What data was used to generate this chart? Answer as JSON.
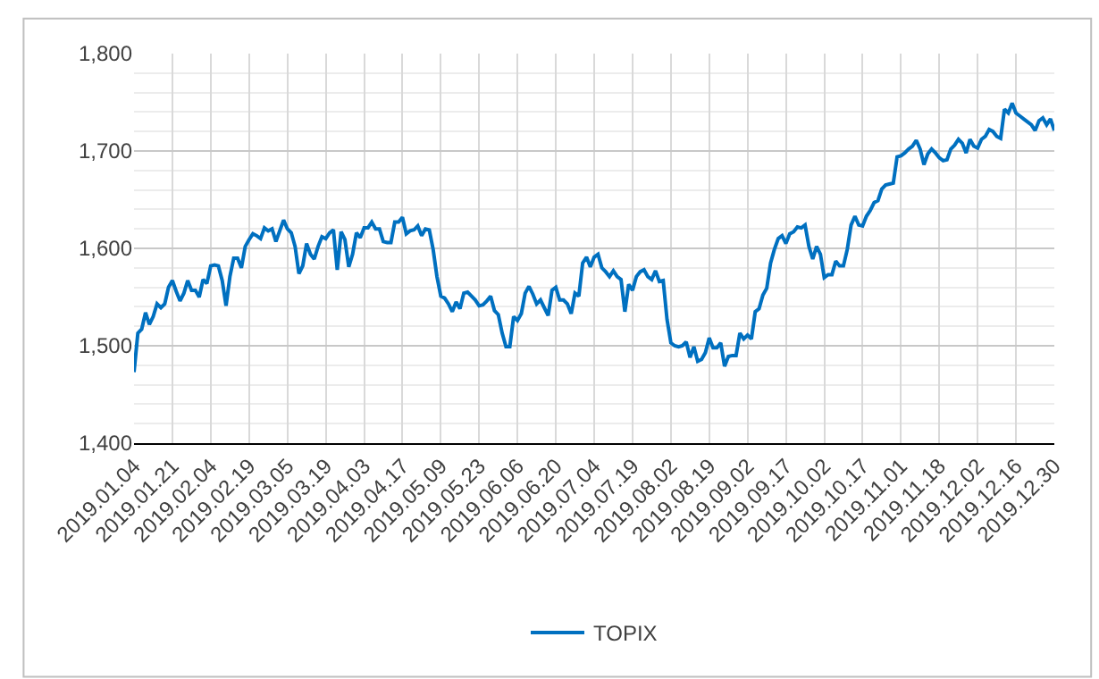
{
  "chart_data": {
    "type": "line",
    "categories": [
      "2019.01.04",
      null,
      null,
      null,
      null,
      null,
      null,
      null,
      null,
      null,
      "2019.01.21",
      null,
      null,
      null,
      null,
      null,
      null,
      null,
      null,
      null,
      "2019.02.04",
      null,
      null,
      null,
      null,
      null,
      null,
      null,
      null,
      null,
      "2019.02.19",
      null,
      null,
      null,
      null,
      null,
      null,
      null,
      null,
      null,
      "2019.03.05",
      null,
      null,
      null,
      null,
      null,
      null,
      null,
      null,
      null,
      "2019.03.19",
      null,
      null,
      null,
      null,
      null,
      null,
      null,
      null,
      null,
      "2019.04.03",
      null,
      null,
      null,
      null,
      null,
      null,
      null,
      null,
      null,
      "2019.04.17",
      null,
      null,
      null,
      null,
      null,
      null,
      null,
      null,
      null,
      "2019.05.09",
      null,
      null,
      null,
      null,
      null,
      null,
      null,
      null,
      null,
      "2019.05.23",
      null,
      null,
      null,
      null,
      null,
      null,
      null,
      null,
      null,
      "2019.06.06",
      null,
      null,
      null,
      null,
      null,
      null,
      null,
      null,
      null,
      "2019.06.20",
      null,
      null,
      null,
      null,
      null,
      null,
      null,
      null,
      null,
      "2019.07.04",
      null,
      null,
      null,
      null,
      null,
      null,
      null,
      null,
      null,
      "2019.07.19",
      null,
      null,
      null,
      null,
      null,
      null,
      null,
      null,
      null,
      "2019.08.02",
      null,
      null,
      null,
      null,
      null,
      null,
      null,
      null,
      null,
      "2019.08.19",
      null,
      null,
      null,
      null,
      null,
      null,
      null,
      null,
      null,
      "2019.09.02",
      null,
      null,
      null,
      null,
      null,
      null,
      null,
      null,
      null,
      "2019.09.17",
      null,
      null,
      null,
      null,
      null,
      null,
      null,
      null,
      null,
      "2019.10.02",
      null,
      null,
      null,
      null,
      null,
      null,
      null,
      null,
      null,
      "2019.10.17",
      null,
      null,
      null,
      null,
      null,
      null,
      null,
      null,
      null,
      "2019.11.01",
      null,
      null,
      null,
      null,
      null,
      null,
      null,
      null,
      null,
      "2019.11.18",
      null,
      null,
      null,
      null,
      null,
      null,
      null,
      null,
      null,
      "2019.12.02",
      null,
      null,
      null,
      null,
      null,
      null,
      null,
      null,
      null,
      "2019.12.16",
      null,
      null,
      null,
      null,
      null,
      null,
      null,
      null,
      null,
      "2019.12.30"
    ],
    "series": [
      {
        "name": "TOPIX",
        "color": "#0070c0",
        "values": [
          1473,
          1513,
          1517,
          1534,
          1522,
          1530,
          1543,
          1539,
          1543,
          1560,
          1567,
          1556,
          1546,
          1554,
          1567,
          1557,
          1557,
          1550,
          1568,
          1564,
          1582,
          1583,
          1582,
          1567,
          1541,
          1571,
          1590,
          1590,
          1580,
          1602,
          1609,
          1615,
          1613,
          1610,
          1621,
          1618,
          1620,
          1607,
          1618,
          1629,
          1620,
          1616,
          1602,
          1574,
          1582,
          1605,
          1594,
          1589,
          1602,
          1612,
          1610,
          1616,
          1619,
          1578,
          1617,
          1609,
          1581,
          1594,
          1616,
          1611,
          1621,
          1621,
          1627,
          1620,
          1620,
          1607,
          1606,
          1606,
          1627,
          1627,
          1632,
          1615,
          1618,
          1619,
          1623,
          1613,
          1620,
          1619,
          1599,
          1571,
          1551,
          1549,
          1543,
          1535,
          1545,
          1538,
          1554,
          1555,
          1551,
          1547,
          1541,
          1542,
          1546,
          1551,
          1536,
          1532,
          1513,
          1499,
          1499,
          1530,
          1526,
          1533,
          1554,
          1561,
          1553,
          1543,
          1547,
          1539,
          1531,
          1557,
          1560,
          1547,
          1547,
          1543,
          1533,
          1554,
          1551,
          1585,
          1591,
          1581,
          1591,
          1594,
          1580,
          1576,
          1571,
          1577,
          1571,
          1568,
          1535,
          1563,
          1557,
          1571,
          1576,
          1578,
          1571,
          1568,
          1577,
          1566,
          1567,
          1527,
          1503,
          1500,
          1499,
          1500,
          1504,
          1488,
          1499,
          1484,
          1486,
          1493,
          1508,
          1498,
          1498,
          1503,
          1479,
          1489,
          1490,
          1490,
          1513,
          1507,
          1511,
          1507,
          1535,
          1538,
          1552,
          1559,
          1585,
          1599,
          1610,
          1613,
          1605,
          1615,
          1617,
          1622,
          1621,
          1624,
          1602,
          1589,
          1602,
          1594,
          1570,
          1573,
          1573,
          1587,
          1582,
          1582,
          1599,
          1624,
          1633,
          1624,
          1623,
          1633,
          1639,
          1647,
          1649,
          1661,
          1665,
          1666,
          1667,
          1694,
          1695,
          1698,
          1702,
          1705,
          1711,
          1702,
          1686,
          1697,
          1702,
          1698,
          1693,
          1690,
          1691,
          1702,
          1706,
          1712,
          1708,
          1698,
          1712,
          1705,
          1703,
          1712,
          1715,
          1722,
          1720,
          1715,
          1713,
          1743,
          1739,
          1749,
          1739,
          1736,
          1733,
          1730,
          1727,
          1721,
          1731,
          1734,
          1727,
          1733,
          1721
        ]
      }
    ],
    "ylim": [
      1400,
      1800
    ],
    "yticks": [
      {
        "value": 1400,
        "label": "1,400"
      },
      {
        "value": 1500,
        "label": "1,500"
      },
      {
        "value": 1600,
        "label": "1,600"
      },
      {
        "value": 1700,
        "label": "1,700"
      },
      {
        "value": 1800,
        "label": "1,800"
      }
    ],
    "grid": true,
    "legend": "bottom",
    "marker": "none",
    "line_style": "solid"
  }
}
